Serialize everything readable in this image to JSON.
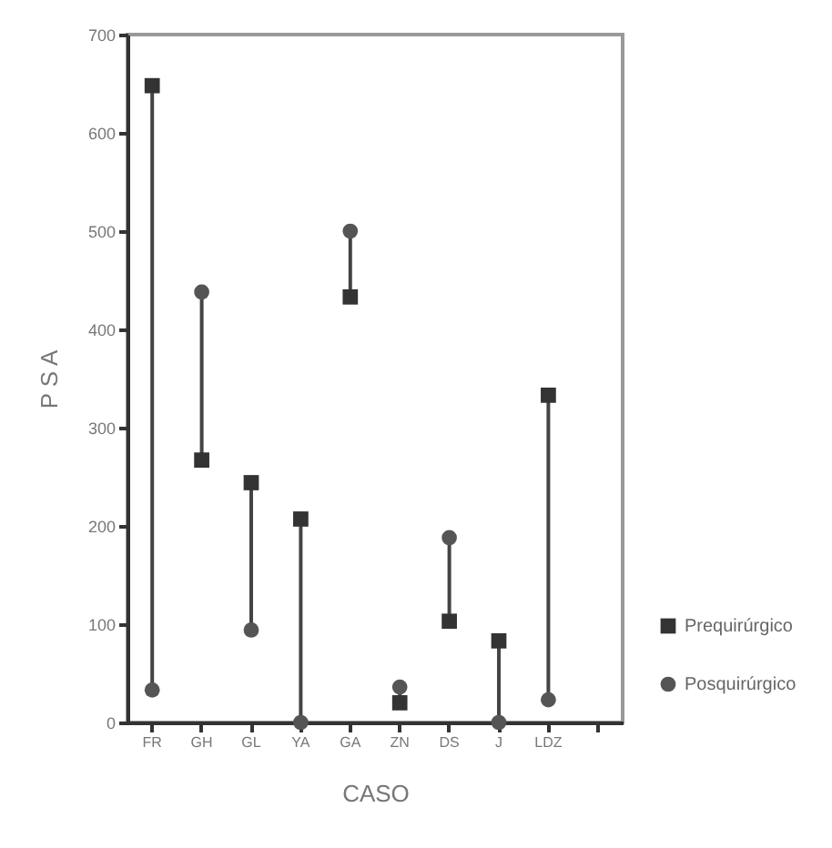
{
  "chart_data": {
    "type": "scatter",
    "xlabel": "CASO",
    "ylabel": "P S A",
    "categories": [
      "FR",
      "GH",
      "GL",
      "YA",
      "GA",
      "ZN",
      "DS",
      "J",
      "LDZ",
      null
    ],
    "series": [
      {
        "name": "Prequirúrgico",
        "color": "#333333",
        "marker": "square",
        "values": [
          648,
          267,
          244,
          207,
          433,
          20,
          103,
          83,
          333,
          null
        ]
      },
      {
        "name": "Posquirúrgico",
        "color": "#555555",
        "marker": "circle",
        "values": [
          33,
          438,
          94,
          0,
          500,
          36,
          188,
          0,
          23,
          null
        ]
      }
    ],
    "ylim": [
      0,
      700
    ],
    "yticks": [
      0,
      100,
      200,
      300,
      400,
      500,
      600,
      700
    ],
    "legend": "bottom right"
  }
}
